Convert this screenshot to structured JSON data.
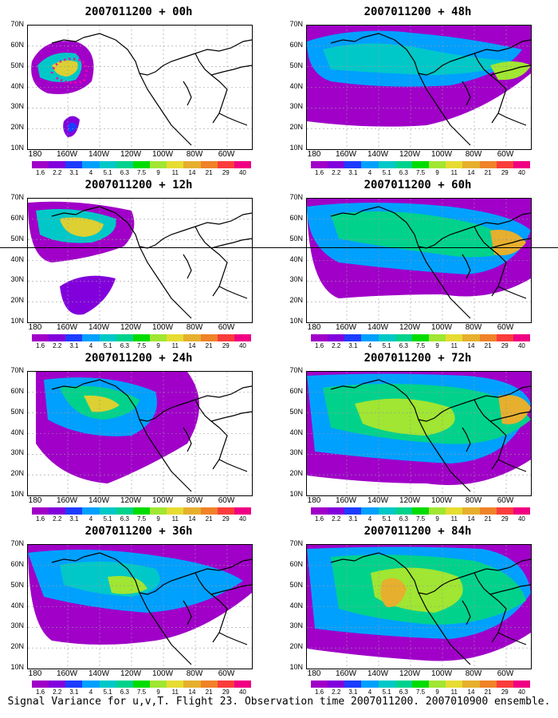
{
  "panels": [
    {
      "title": "2007011200 + 00h"
    },
    {
      "title": "2007011200 + 48h"
    },
    {
      "title": "2007011200 + 12h"
    },
    {
      "title": "2007011200 + 60h"
    },
    {
      "title": "2007011200 + 24h"
    },
    {
      "title": "2007011200 + 72h"
    },
    {
      "title": "2007011200 + 36h"
    },
    {
      "title": "2007011200 + 84h"
    }
  ],
  "lat_ticks": [
    "70N",
    "60N",
    "50N",
    "40N",
    "30N",
    "20N",
    "10N"
  ],
  "lon_ticks": [
    "180",
    "160W",
    "140W",
    "120W",
    "100W",
    "80W",
    "60W"
  ],
  "colorbar": {
    "labels": [
      "1.6",
      "2.2",
      "3.1",
      "4",
      "5.1",
      "6.3",
      "7.5",
      "9",
      "11",
      "14",
      "21",
      "29",
      "40"
    ],
    "colors": [
      "#a000c8",
      "#8200dc",
      "#1e3cff",
      "#00a0ff",
      "#00c8c8",
      "#00d28c",
      "#00dc00",
      "#a0e632",
      "#e6dc32",
      "#e6af2d",
      "#f08228",
      "#fa3c3c",
      "#f00082"
    ]
  },
  "caption": "Signal Variance for u,v,T. Flight 23. Observation time 2007011200. 2007010900 ensemble.",
  "colors": {
    "land_outline": "#000000",
    "grid": "#999999",
    "flight_track": "#ff00a0"
  }
}
